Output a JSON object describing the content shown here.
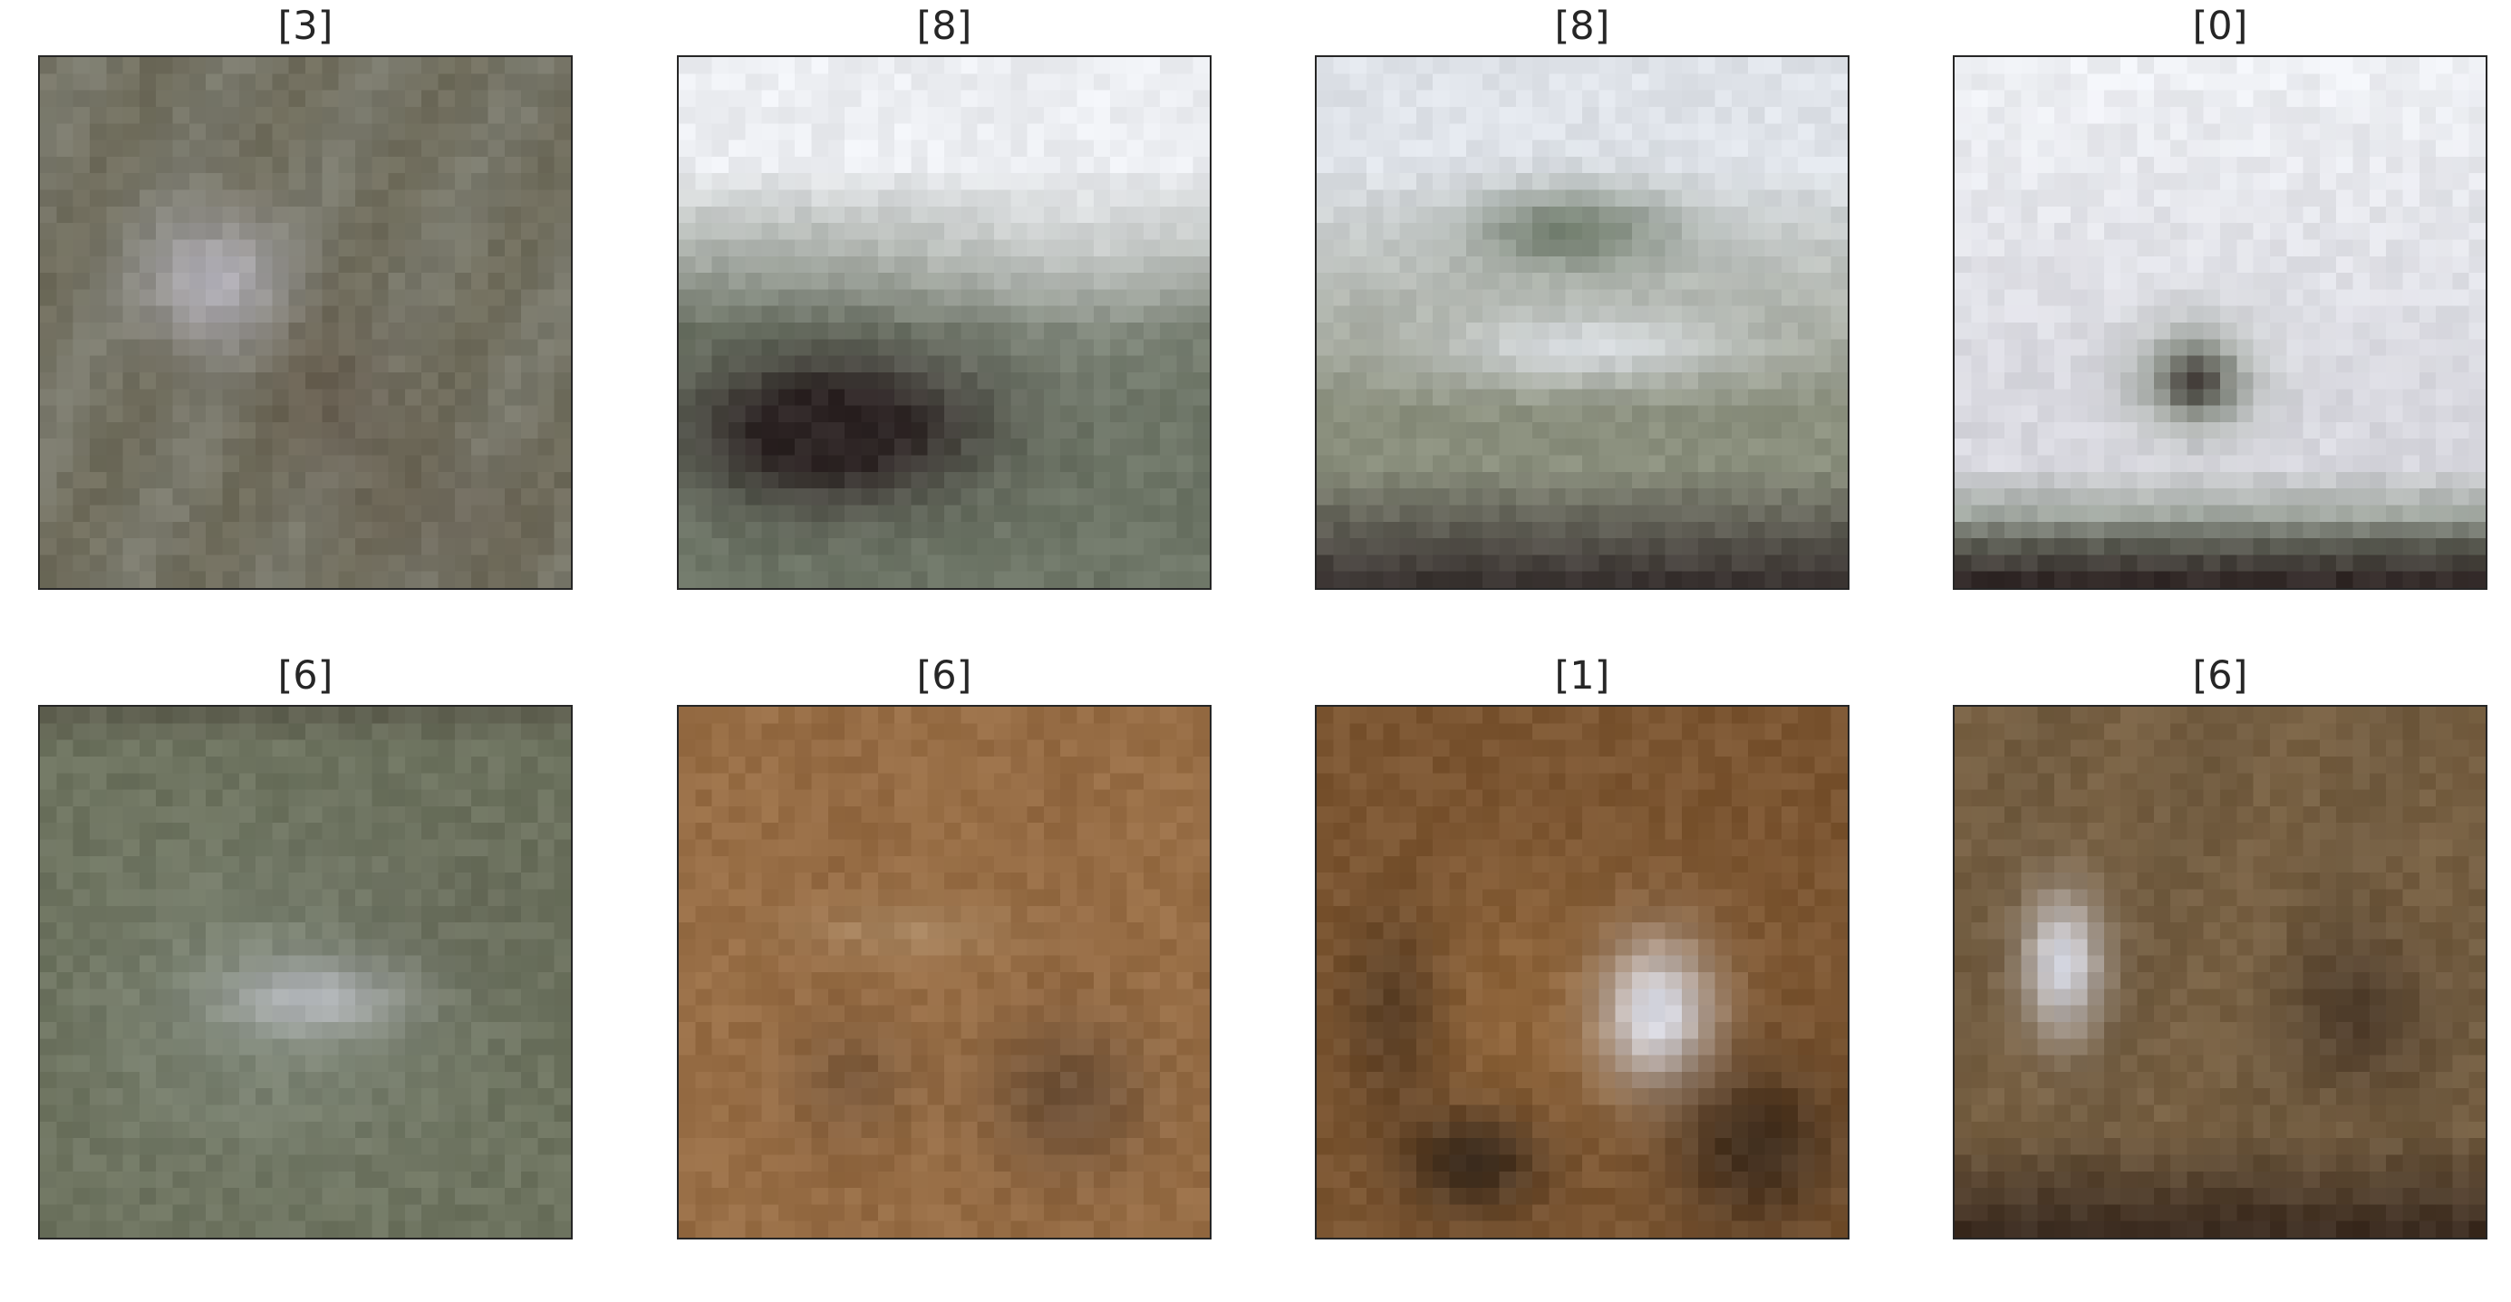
{
  "grid": {
    "rows": 2,
    "cols": 4
  },
  "panels": [
    {
      "title": "[3]",
      "palette": {
        "base": "#6f6c5b",
        "accent": "#8b8e87",
        "dark": "#5f5244",
        "light": "#b6b4bd"
      }
    },
    {
      "title": "[8]",
      "palette": {
        "base": "#d7d8df",
        "accent": "#6e7667",
        "dark": "#2d2424",
        "light": "#eceef2"
      }
    },
    {
      "title": "[8]",
      "palette": {
        "base": "#8b907e",
        "accent": "#64715f",
        "dark": "#2b2223",
        "light": "#dfe3e9"
      }
    },
    {
      "title": "[0]",
      "palette": {
        "base": "#d8d8df",
        "accent": "#6e7a66",
        "dark": "#2f2524",
        "light": "#eef0f4"
      }
    },
    {
      "title": "[6]",
      "palette": {
        "base": "#6d735f",
        "accent": "#8f998e",
        "dark": "#4d473d",
        "light": "#c6c8d2"
      }
    },
    {
      "title": "[6]",
      "palette": {
        "base": "#926841",
        "accent": "#a57b50",
        "dark": "#5b4533",
        "light": "#b69976"
      }
    },
    {
      "title": "[1]",
      "palette": {
        "base": "#7b5531",
        "accent": "#a27444",
        "dark": "#2e2218",
        "light": "#d8d9e2"
      }
    },
    {
      "title": "[6]",
      "palette": {
        "base": "#6f5a3f",
        "accent": "#8b6f4d",
        "dark": "#2f2119",
        "light": "#d6d8e2"
      }
    }
  ]
}
